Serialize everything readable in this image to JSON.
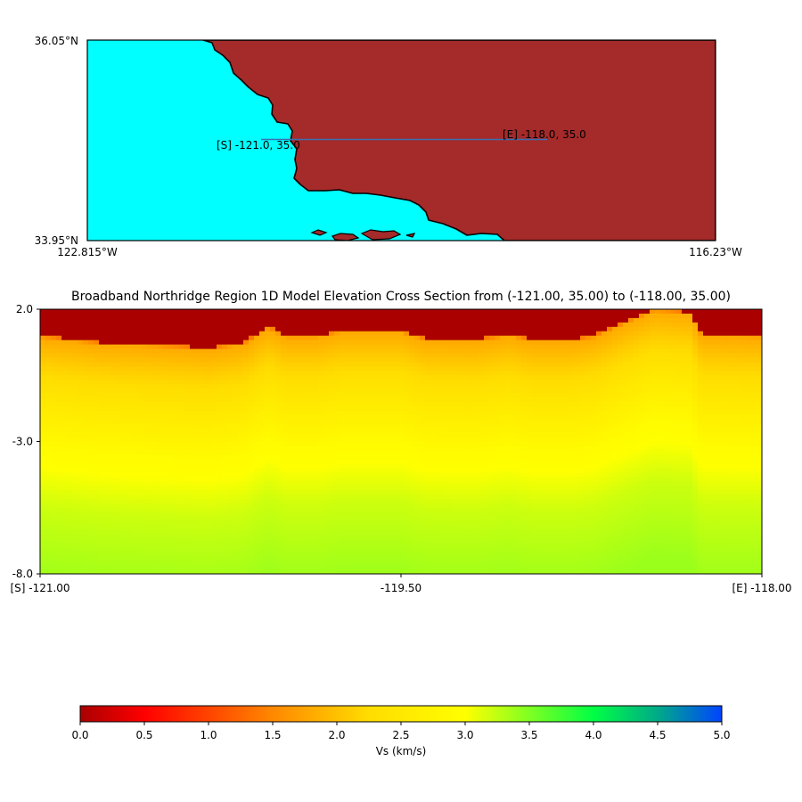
{
  "chart_data": [
    {
      "type": "map",
      "lat_labels": [
        "36.05°N",
        "33.95°N"
      ],
      "lon_labels": [
        "122.815°W",
        "116.23°W"
      ],
      "lat_range": [
        33.95,
        36.05
      ],
      "lon_range": [
        -122.815,
        -116.23
      ],
      "colors": {
        "ocean": "#00ffff",
        "land": "#a52a2a",
        "coast": "#000000",
        "line": "#3d6fb0"
      },
      "line": {
        "start": {
          "lon": -121.0,
          "lat": 35.0,
          "label": "[S] -121.0, 35.0"
        },
        "end": {
          "lon": -118.0,
          "lat": 35.0,
          "label": "[E] -118.0, 35.0"
        }
      }
    },
    {
      "type": "heatmap",
      "title": "Broadband Northridge Region 1D Model Elevation Cross Section from (-121.00, 35.00) to (-118.00, 35.00)",
      "ytick_labels": [
        "2.0",
        "-3.0",
        "-8.0"
      ],
      "ytick_values": [
        2.0,
        -3.0,
        -8.0
      ],
      "xtick_labels": [
        "[S] -121.00",
        "-119.50",
        "[E] -118.00"
      ],
      "xtick_values": [
        -121.0,
        -119.5,
        -118.0
      ],
      "xlim": [
        -121.0,
        -118.0
      ],
      "ylim": [
        -8.0,
        2.0
      ],
      "surface_profile": [
        [
          -121.0,
          1.0
        ],
        [
          -120.75,
          0.75
        ],
        [
          -120.5,
          0.65
        ],
        [
          -120.3,
          0.55
        ],
        [
          -120.15,
          0.75
        ],
        [
          -120.05,
          1.35
        ],
        [
          -119.98,
          1.0
        ],
        [
          -119.85,
          1.0
        ],
        [
          -119.75,
          1.2
        ],
        [
          -119.5,
          1.2
        ],
        [
          -119.4,
          0.9
        ],
        [
          -119.2,
          0.85
        ],
        [
          -119.05,
          1.05
        ],
        [
          -118.95,
          0.85
        ],
        [
          -118.8,
          0.85
        ],
        [
          -118.7,
          1.0
        ],
        [
          -118.55,
          1.6
        ],
        [
          -118.45,
          2.0
        ],
        [
          -118.3,
          1.9
        ],
        [
          -118.25,
          1.05
        ],
        [
          -118.0,
          1.0
        ]
      ],
      "velocity_stops": [
        {
          "depth_below_surface": 0.0,
          "vs": 1.4
        },
        {
          "depth_below_surface": 0.1,
          "vs": 1.8
        },
        {
          "depth_below_surface": 1.0,
          "vs": 2.1
        },
        {
          "depth_below_surface": 2.5,
          "vs": 2.5
        },
        {
          "depth_below_surface": 4.2,
          "vs": 2.9
        },
        {
          "depth_below_surface": 6.5,
          "vs": 3.2
        },
        {
          "depth_below_surface": 9.5,
          "vs": 3.4
        }
      ],
      "air_vs": 0.0
    },
    {
      "type": "colorbar",
      "label": "Vs (km/s)",
      "range": [
        0.0,
        5.0
      ],
      "tick_labels": [
        "0.0",
        "0.5",
        "1.0",
        "1.5",
        "2.0",
        "2.5",
        "3.0",
        "3.5",
        "4.0",
        "4.5",
        "5.0"
      ],
      "colormap": [
        "#aa0000",
        "#ff0000",
        "#ff8800",
        "#ffee00",
        "#ffff00",
        "#00ff00",
        "#00aa88",
        "#0044ff"
      ]
    }
  ]
}
